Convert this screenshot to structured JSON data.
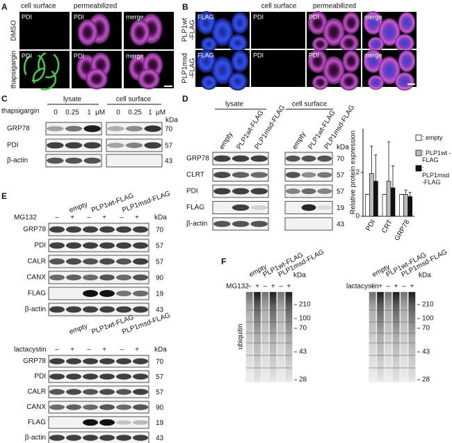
{
  "panel_A": {
    "label": "A",
    "col_headers": [
      "cell surface",
      "permeabilized"
    ],
    "row_labels": [
      "DMSO",
      "thapsigargin"
    ],
    "channels": [
      "PDI",
      "PDI",
      "merge"
    ]
  },
  "panel_B": {
    "label": "B",
    "col_headers": [
      "cell surface",
      "permeabilized"
    ],
    "row_labels": [
      [
        "PLP1wt",
        "-FLAG"
      ],
      [
        "PLP1msd",
        "-FLAG"
      ]
    ],
    "channels": [
      "FLAG",
      "PDI",
      "PDI",
      "merge"
    ]
  },
  "panel_C": {
    "label": "C",
    "treatment": "thapsigargin",
    "groups": [
      "lysate",
      "cell surface"
    ],
    "concentrations": [
      0,
      0.25,
      1
    ],
    "unit": "μM",
    "kda": "kDa",
    "rows": [
      "GRP78",
      "PDI",
      "β-actin"
    ],
    "markers": [
      70,
      57,
      43
    ]
  },
  "panel_D": {
    "label": "D",
    "groups": [
      "lysate",
      "cell surface"
    ],
    "lanes": [
      "empty",
      "PLP1wt-FLAG",
      "PLP1msd-FLAG"
    ],
    "kda": "kDa",
    "rows": [
      "GRP78",
      "CLRT",
      "PDI",
      "FLAG",
      "β-actin"
    ],
    "markers": [
      70,
      57,
      57,
      19,
      43
    ]
  },
  "chart_data": {
    "type": "bar",
    "y_label": "Relative protein expression",
    "categories": [
      "PDI",
      "CRT",
      "GRP78"
    ],
    "ylim": [
      0,
      4
    ],
    "yticks": [
      0,
      2
    ],
    "series": [
      {
        "name": ": empty",
        "color": "#ffffff",
        "values": [
          1,
          1,
          1
        ],
        "errors": [
          0,
          0,
          0
        ]
      },
      {
        "name": ": PLP1wt -FLAG",
        "color": "#bdbdbd",
        "values": [
          1.95,
          1.6,
          1.0
        ],
        "errors": [
          1.25,
          1.8,
          0.2
        ]
      },
      {
        "name": ": PLP1msd -FLAG",
        "color": "#111111",
        "values": [
          1.6,
          1.3,
          0.9
        ],
        "errors": [
          1.2,
          1.0,
          0.2
        ]
      }
    ]
  },
  "panel_E": {
    "label": "E",
    "lanes": [
      "empty",
      "PLP1wt-FLAG",
      "PLP1msd-FLAG"
    ],
    "signs": [
      "–",
      "+",
      "–",
      "+",
      "–",
      "+"
    ],
    "kda": "kDa",
    "blots": [
      {
        "treatment": "MG132",
        "rows": [
          "GRP78",
          "PDI",
          "CALR",
          "CANX",
          "FLAG",
          "β-actin"
        ],
        "markers": [
          70,
          57,
          57,
          90,
          19,
          43
        ]
      },
      {
        "treatment": "lactacystin",
        "rows": [
          "GRP78",
          "PDI",
          "CALR",
          "CANX",
          "FLAG",
          "β-actin"
        ],
        "markers": [
          70,
          57,
          57,
          90,
          19,
          43
        ]
      }
    ]
  },
  "panel_F": {
    "label": "F",
    "lanes": [
      "empty",
      "PLP1wt-FLAG",
      "PLP1msd-FLAG"
    ],
    "signs": [
      "–",
      "+",
      "–",
      "+",
      "–",
      "+"
    ],
    "kda": "kDa",
    "antibody": "ubiquitin",
    "blots": [
      {
        "treatment": "MG132",
        "markers": [
          210,
          100,
          70,
          43,
          28
        ]
      },
      {
        "treatment": "lactacystin",
        "markers": [
          210,
          100,
          70,
          43,
          28
        ]
      }
    ]
  }
}
